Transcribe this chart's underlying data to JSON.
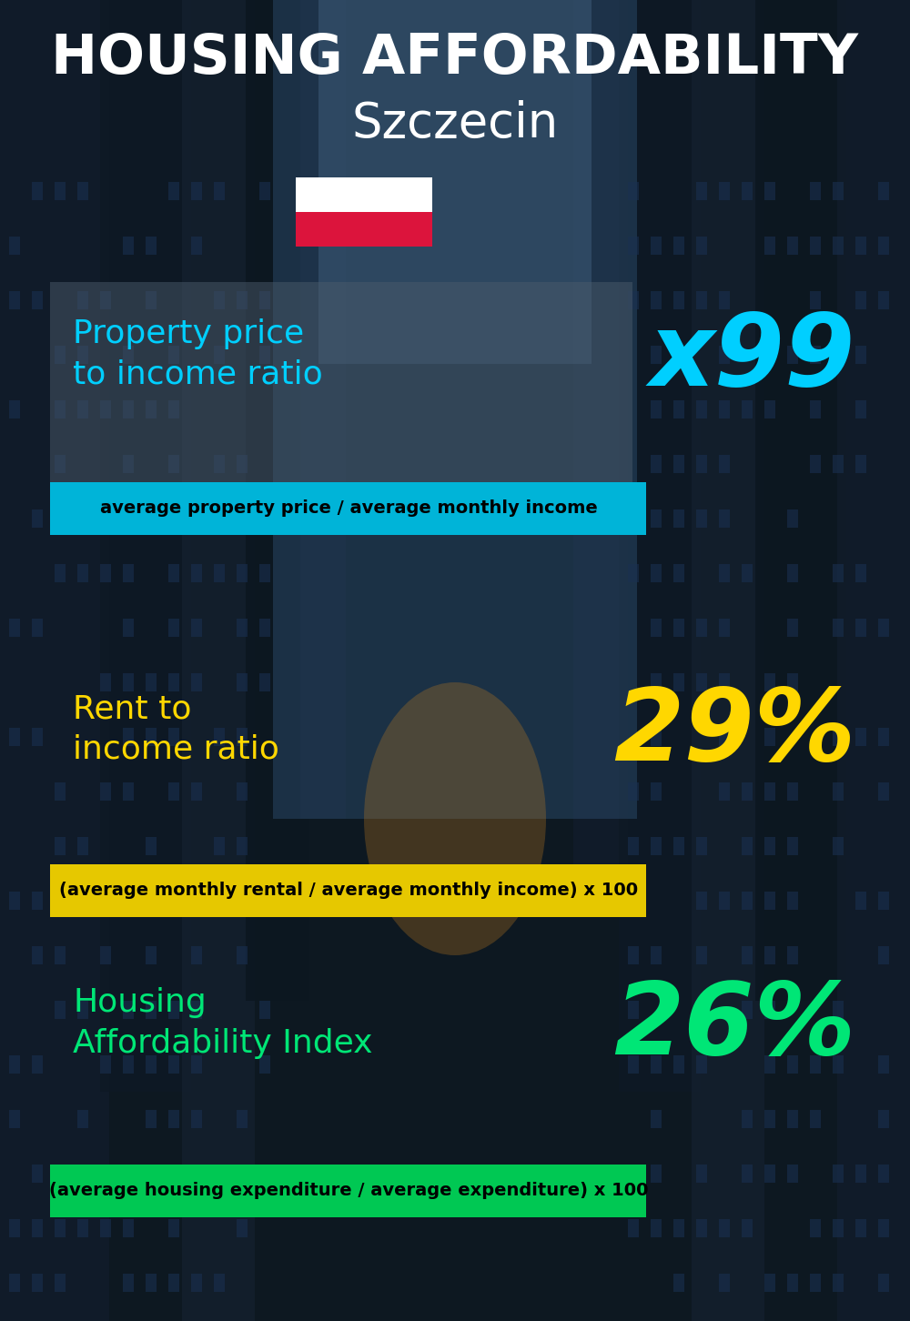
{
  "title_line1": "HOUSING AFFORDABILITY",
  "title_line2": "Szczecin",
  "bg_color": "#0d1821",
  "section1_label": "Property price\nto income ratio",
  "section1_value": "x99",
  "section1_label_color": "#00cfff",
  "section1_value_color": "#00cfff",
  "section1_banner": "average property price / average monthly income",
  "section1_banner_bg": "#00b4d8",
  "section2_label": "Rent to\nincome ratio",
  "section2_value": "29%",
  "section2_label_color": "#ffd700",
  "section2_value_color": "#ffd700",
  "section2_banner": "(average monthly rental / average monthly income) x 100",
  "section2_banner_bg": "#e6c800",
  "section3_label": "Housing\nAffordability Index",
  "section3_value": "26%",
  "section3_label_color": "#00e676",
  "section3_value_color": "#00e676",
  "section3_banner": "(average housing expenditure / average expenditure) x 100",
  "section3_banner_bg": "#00c853",
  "title_color": "#ffffff",
  "subtitle_color": "#ffffff",
  "banner_text_color": "#000000",
  "overlay_color": "#3a4a5a",
  "flag_white": "#ffffff",
  "flag_red": "#dc143c",
  "title_fontsize": 44,
  "subtitle_fontsize": 38,
  "label_fontsize": 26,
  "value_fontsize": 80,
  "banner_fontsize": 14
}
